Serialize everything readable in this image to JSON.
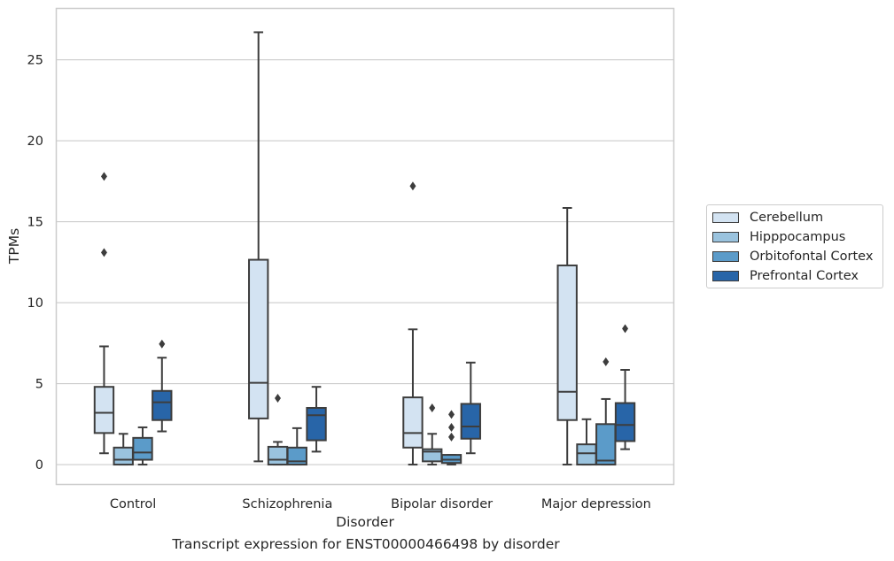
{
  "chart_data": {
    "type": "box",
    "caption": "Transcript expression for ENST00000466498 by disorder",
    "xlabel": "Disorder",
    "ylabel": "TPMs",
    "ylim": [
      -1.2,
      28.2
    ],
    "yticks": [
      0,
      5,
      10,
      15,
      20,
      25
    ],
    "grid": "horizontal",
    "legend_placement": "right",
    "categories": [
      "Control",
      "Schizophrenia",
      "Bipolar disorder",
      "Major depression"
    ],
    "series": [
      {
        "name": "Cerebellum",
        "color": "#d3e3f2",
        "boxes": [
          {
            "low": 0.7,
            "q1": 1.95,
            "median": 3.2,
            "q3": 4.8,
            "high": 7.3,
            "outliers": [
              13.1,
              17.8
            ]
          },
          {
            "low": 0.2,
            "q1": 2.85,
            "median": 5.05,
            "q3": 12.65,
            "high": 26.7,
            "outliers": []
          },
          {
            "low": 0.0,
            "q1": 1.05,
            "median": 1.95,
            "q3": 4.15,
            "high": 8.35,
            "outliers": [
              17.2
            ]
          },
          {
            "low": 0.0,
            "q1": 2.75,
            "median": 4.5,
            "q3": 12.3,
            "high": 15.85,
            "outliers": []
          }
        ]
      },
      {
        "name": "Hipppocampus",
        "color": "#9ac3de",
        "boxes": [
          {
            "low": 0.0,
            "q1": 0.0,
            "median": 0.3,
            "q3": 1.05,
            "high": 1.9,
            "outliers": []
          },
          {
            "low": 0.0,
            "q1": 0.0,
            "median": 0.3,
            "q3": 1.1,
            "high": 1.4,
            "outliers": [
              4.1
            ]
          },
          {
            "low": 0.0,
            "q1": 0.2,
            "median": 0.8,
            "q3": 0.95,
            "high": 1.9,
            "outliers": [
              3.5
            ]
          },
          {
            "low": 0.0,
            "q1": 0.0,
            "median": 0.7,
            "q3": 1.25,
            "high": 2.8,
            "outliers": []
          }
        ]
      },
      {
        "name": "Orbitofontal Cortex",
        "color": "#5b9bc9",
        "boxes": [
          {
            "low": 0.0,
            "q1": 0.3,
            "median": 0.75,
            "q3": 1.65,
            "high": 2.3,
            "outliers": []
          },
          {
            "low": 0.0,
            "q1": 0.0,
            "median": 0.2,
            "q3": 1.05,
            "high": 2.25,
            "outliers": []
          },
          {
            "low": 0.0,
            "q1": 0.1,
            "median": 0.3,
            "q3": 0.6,
            "high": 0.6,
            "outliers": [
              1.7,
              2.3,
              3.1
            ]
          },
          {
            "low": 0.0,
            "q1": 0.0,
            "median": 0.25,
            "q3": 2.5,
            "high": 4.05,
            "outliers": [
              6.35
            ]
          }
        ]
      },
      {
        "name": "Prefrontal Cortex",
        "color": "#2865a8",
        "boxes": [
          {
            "low": 2.05,
            "q1": 2.75,
            "median": 3.85,
            "q3": 4.55,
            "high": 6.6,
            "outliers": [
              7.45
            ]
          },
          {
            "low": 0.8,
            "q1": 1.5,
            "median": 3.05,
            "q3": 3.5,
            "high": 4.8,
            "outliers": []
          },
          {
            "low": 0.7,
            "q1": 1.6,
            "median": 2.35,
            "q3": 3.75,
            "high": 6.3,
            "outliers": []
          },
          {
            "low": 0.95,
            "q1": 1.45,
            "median": 2.45,
            "q3": 3.8,
            "high": 5.85,
            "outliers": [
              8.4
            ]
          }
        ]
      }
    ]
  }
}
